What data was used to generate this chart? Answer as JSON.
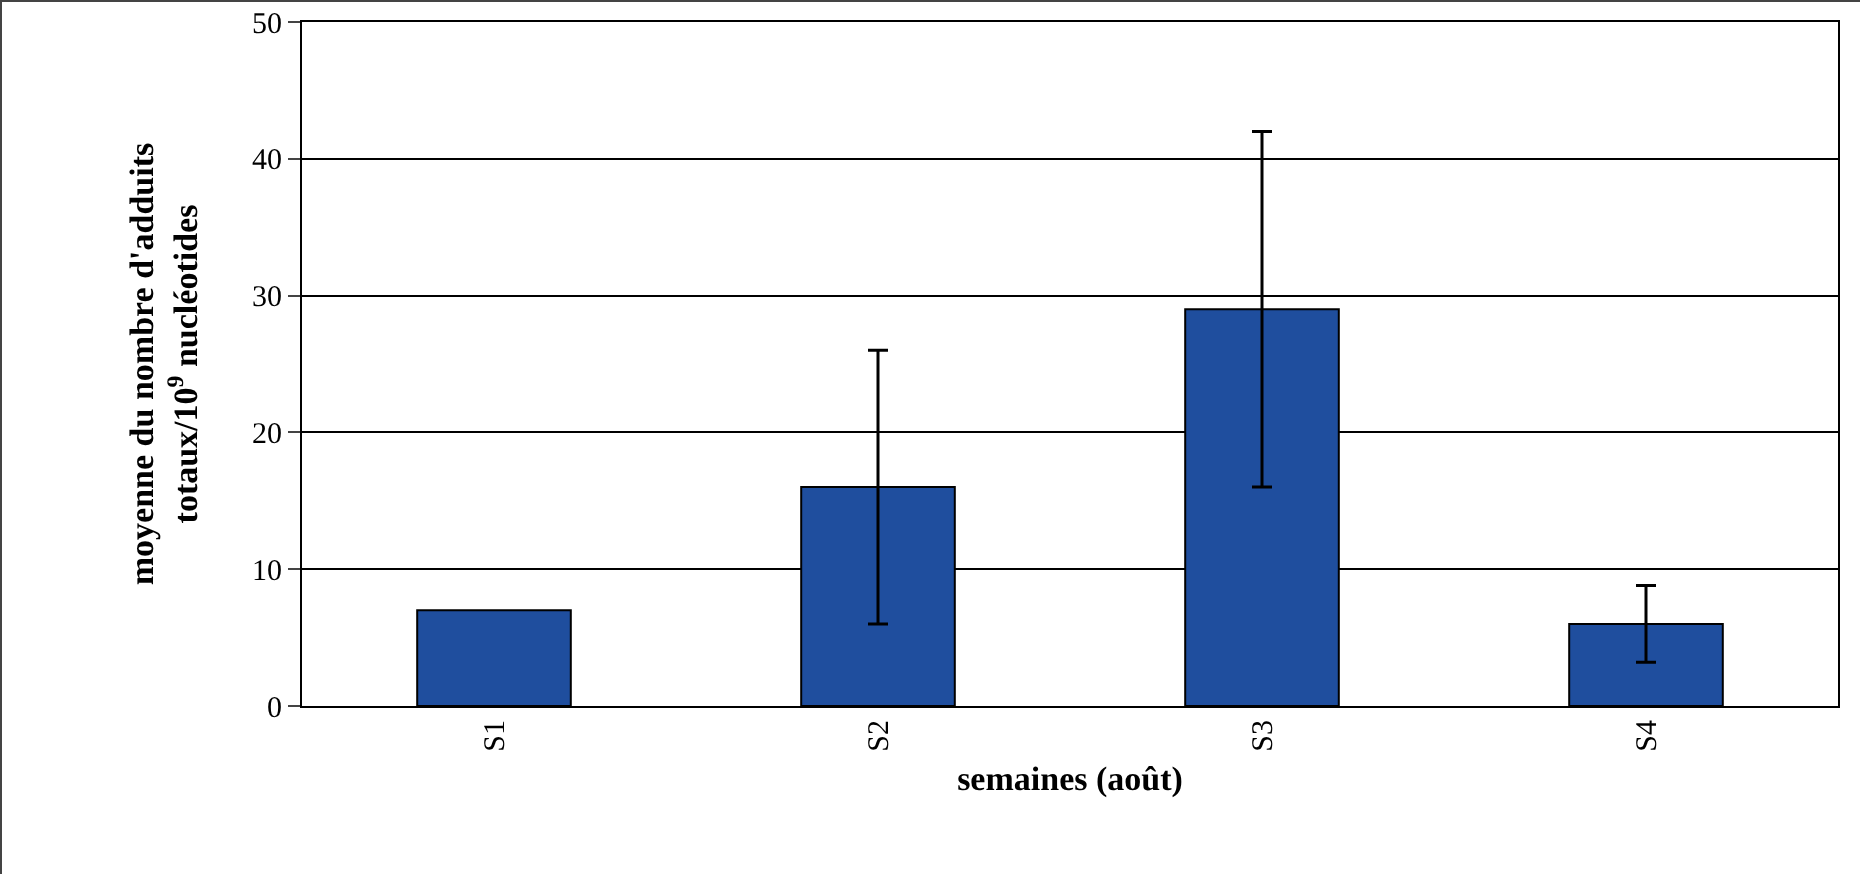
{
  "chart_data": {
    "type": "bar",
    "categories": [
      "S1",
      "S2",
      "S3",
      "S4"
    ],
    "values": [
      7,
      16,
      29,
      6
    ],
    "errors": [
      null,
      10,
      13,
      2.8
    ],
    "color": "#1f4e9e",
    "xlabel": "semaines (août)",
    "ylabel": "moyenne du nombre d'adduits\ntotaux/10$^{9}$ nucléotides",
    "ylim": [
      0,
      50
    ],
    "yticks": [
      0,
      10,
      20,
      30,
      40,
      50
    ],
    "grid": "y"
  }
}
